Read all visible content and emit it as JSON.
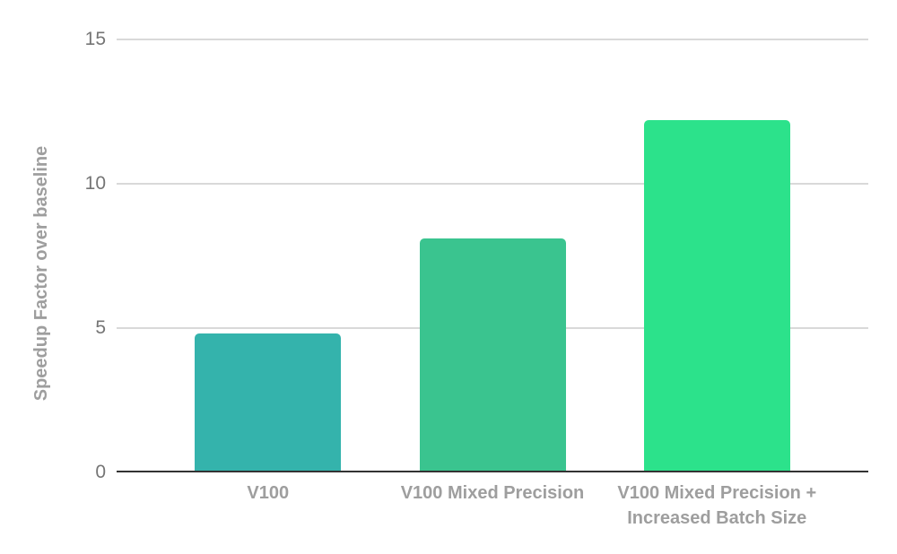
{
  "chart_data": {
    "type": "bar",
    "title": "",
    "xlabel": "",
    "ylabel": "Speedup Factor over baseline",
    "categories": [
      "V100",
      "V100 Mixed Precision",
      "V100 Mixed Precision +\nIncreased Batch Size"
    ],
    "values": [
      4.8,
      8.1,
      12.2
    ],
    "bar_colors": [
      "#34b3ac",
      "#3ac48f",
      "#2ce28b"
    ],
    "ylim": [
      0,
      15
    ],
    "yticks": [
      0,
      5,
      10,
      15
    ],
    "grid": true,
    "legend": "none"
  },
  "colors": {
    "background": "#ffffff",
    "gridline": "#d9d9d9",
    "axis_line": "#333333",
    "tick_text": "#757575",
    "category_text": "#9e9e9e",
    "ylabel_text": "#9e9e9e"
  }
}
